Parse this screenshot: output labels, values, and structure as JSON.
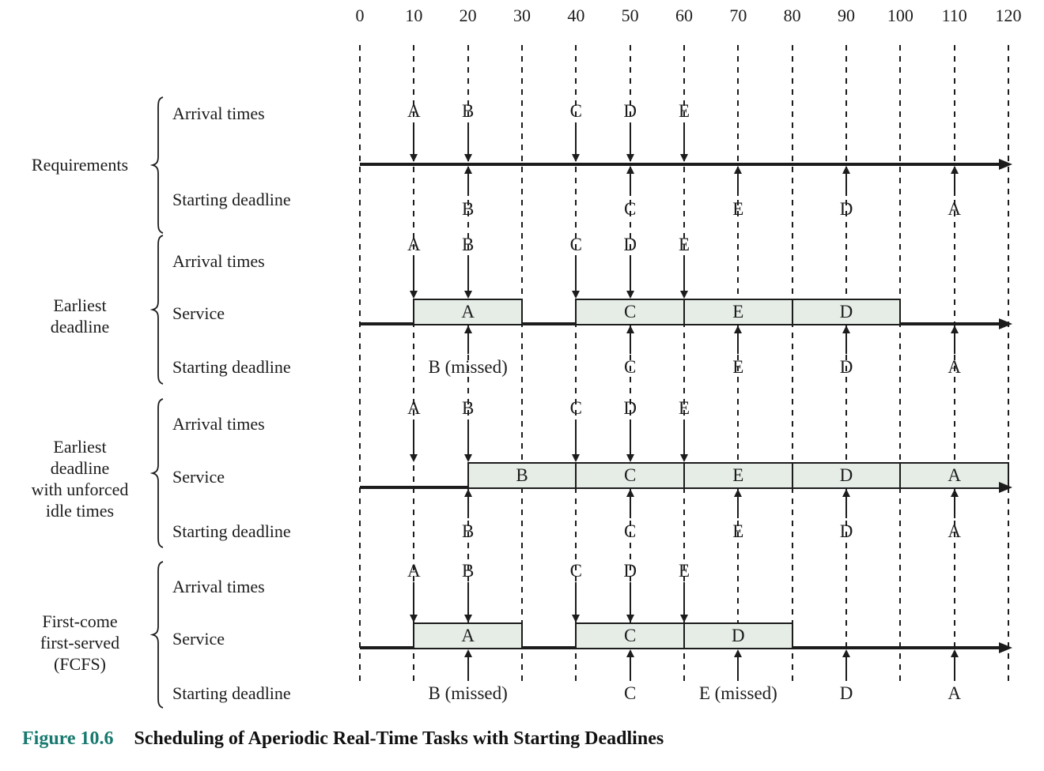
{
  "colors": {
    "ink": "#1c1c1c",
    "box_fill": "#e6ede7",
    "figure_label": "#17796f"
  },
  "axis": {
    "tick_labels": [
      "0",
      "10",
      "20",
      "30",
      "40",
      "50",
      "60",
      "70",
      "80",
      "90",
      "100",
      "110",
      "120"
    ],
    "unit_min": 0,
    "unit_max": 120
  },
  "row_labels": {
    "arrival": "Arrival times",
    "service": "Service",
    "deadline": "Starting deadline"
  },
  "arrivals": [
    {
      "task": "A",
      "t": 10
    },
    {
      "task": "B",
      "t": 20
    },
    {
      "task": "C",
      "t": 40
    },
    {
      "task": "D",
      "t": 50
    },
    {
      "task": "E",
      "t": 60
    }
  ],
  "sections": [
    {
      "name": "Requirements",
      "label_lines": [
        "Requirements"
      ],
      "has_service_row": false,
      "service": [],
      "deadlines": [
        {
          "task": "B",
          "t": 20
        },
        {
          "task": "C",
          "t": 50
        },
        {
          "task": "E",
          "t": 70
        },
        {
          "task": "D",
          "t": 90
        },
        {
          "task": "A",
          "t": 110
        }
      ]
    },
    {
      "name": "Earliest deadline",
      "label_lines": [
        "Earliest",
        "deadline"
      ],
      "has_service_row": true,
      "service": [
        {
          "task": "A",
          "start": 10,
          "end": 30
        },
        {
          "task": "C",
          "start": 40,
          "end": 60
        },
        {
          "task": "E",
          "start": 60,
          "end": 80
        },
        {
          "task": "D",
          "start": 80,
          "end": 100
        }
      ],
      "deadlines": [
        {
          "task": "B (missed)",
          "t": 20
        },
        {
          "task": "C",
          "t": 50
        },
        {
          "task": "E",
          "t": 70
        },
        {
          "task": "D",
          "t": 90
        },
        {
          "task": "A",
          "t": 110
        }
      ]
    },
    {
      "name": "Earliest deadline with unforced idle times",
      "label_lines": [
        "Earliest",
        "deadline",
        "with unforced",
        "idle times"
      ],
      "has_service_row": true,
      "service": [
        {
          "task": "B",
          "start": 20,
          "end": 40
        },
        {
          "task": "C",
          "start": 40,
          "end": 60
        },
        {
          "task": "E",
          "start": 60,
          "end": 80
        },
        {
          "task": "D",
          "start": 80,
          "end": 100
        },
        {
          "task": "A",
          "start": 100,
          "end": 120
        }
      ],
      "deadlines": [
        {
          "task": "B",
          "t": 20
        },
        {
          "task": "C",
          "t": 50
        },
        {
          "task": "E",
          "t": 70
        },
        {
          "task": "D",
          "t": 90
        },
        {
          "task": "A",
          "t": 110
        }
      ]
    },
    {
      "name": "First-come first-served (FCFS)",
      "label_lines": [
        "First-come",
        "first-served",
        "(FCFS)"
      ],
      "has_service_row": true,
      "service": [
        {
          "task": "A",
          "start": 10,
          "end": 30
        },
        {
          "task": "C",
          "start": 40,
          "end": 60
        },
        {
          "task": "D",
          "start": 60,
          "end": 80
        }
      ],
      "deadlines": [
        {
          "task": "B (missed)",
          "t": 20
        },
        {
          "task": "C",
          "t": 50
        },
        {
          "task": "E (missed)",
          "t": 70
        },
        {
          "task": "D",
          "t": 90
        },
        {
          "task": "A",
          "t": 110
        }
      ]
    }
  ],
  "caption": {
    "figure": "Figure 10.6",
    "title": "Scheduling of Aperiodic Real-Time Tasks with Starting Deadlines"
  }
}
